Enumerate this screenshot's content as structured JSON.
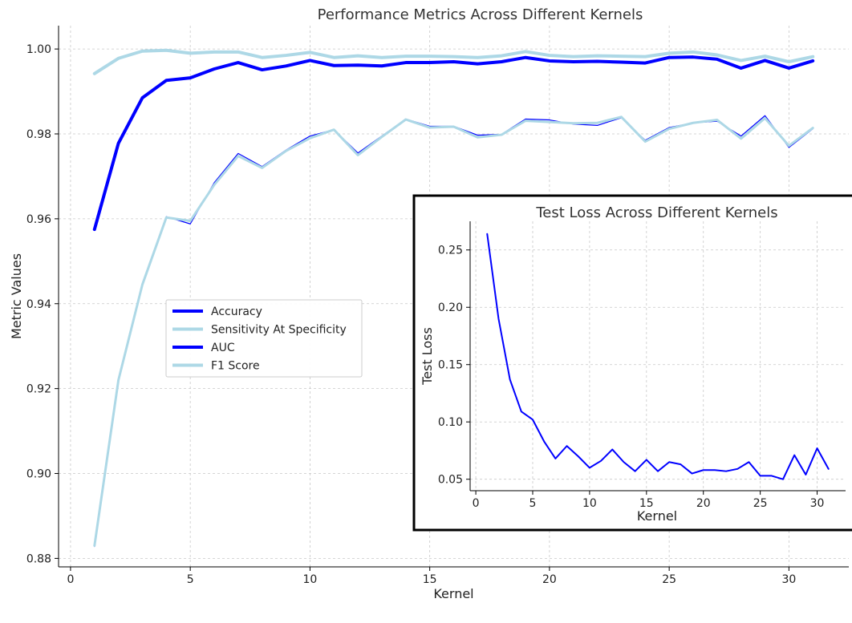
{
  "chart_data": [
    {
      "type": "line",
      "title": "Performance Metrics Across Different Kernels",
      "xlabel": "Kernel",
      "ylabel": "Metric Values",
      "xlim": [
        -0.5,
        32.5
      ],
      "ylim": [
        0.878,
        1.0055
      ],
      "xticks": [
        0,
        5,
        10,
        15,
        20,
        25,
        30
      ],
      "yticks": [
        0.88,
        0.9,
        0.92,
        0.94,
        0.96,
        0.98,
        1.0
      ],
      "grid": true,
      "legend_position": "center-left",
      "x": [
        1,
        2,
        3,
        4,
        5,
        6,
        7,
        8,
        9,
        10,
        11,
        12,
        13,
        14,
        15,
        16,
        17,
        18,
        19,
        20,
        21,
        22,
        23,
        24,
        25,
        26,
        27,
        28,
        29,
        30,
        31
      ],
      "series": [
        {
          "name": "Accuracy",
          "color": "#0000ff",
          "values": [
            0.9575,
            0.9778,
            0.9885,
            0.9926,
            0.9932,
            0.9953,
            0.9968,
            0.9951,
            0.996,
            0.9973,
            0.9961,
            0.9962,
            0.996,
            0.9968,
            0.9968,
            0.997,
            0.9965,
            0.997,
            0.998,
            0.9972,
            0.997,
            0.9971,
            0.9969,
            0.9967,
            0.998,
            0.9981,
            0.9976,
            0.9955,
            0.9973,
            0.9955,
            0.9972
          ]
        },
        {
          "name": "Sensitivity At Specificity",
          "color": "#add8e6",
          "values": [
            0.9942,
            0.9978,
            0.9995,
            0.9997,
            0.999,
            0.9993,
            0.9993,
            0.998,
            0.9985,
            0.9992,
            0.998,
            0.9984,
            0.998,
            0.9983,
            0.9983,
            0.9982,
            0.998,
            0.9984,
            0.9994,
            0.9985,
            0.9982,
            0.9984,
            0.9983,
            0.9982,
            0.999,
            0.9993,
            0.9986,
            0.9973,
            0.9983,
            0.997,
            0.9982
          ]
        },
        {
          "name": "AUC",
          "color": "#0000ff",
          "values": [
            0.8828,
            0.9218,
            0.9448,
            0.9605,
            0.9588,
            0.9685,
            0.9754,
            0.9723,
            0.9762,
            0.9795,
            0.981,
            0.9755,
            0.9795,
            0.9835,
            0.9818,
            0.9818,
            0.9797,
            0.9799,
            0.9835,
            0.9833,
            0.9823,
            0.982,
            0.9838,
            0.9785,
            0.9815,
            0.9826,
            0.983,
            0.9795,
            0.9843,
            0.9768,
            0.9812
          ]
        },
        {
          "name": "F1 Score",
          "color": "#add8e6",
          "values": [
            0.883,
            0.922,
            0.9445,
            0.9603,
            0.9595,
            0.968,
            0.9748,
            0.972,
            0.976,
            0.979,
            0.981,
            0.975,
            0.9793,
            0.9834,
            0.9815,
            0.9817,
            0.9792,
            0.9798,
            0.9831,
            0.9828,
            0.9825,
            0.9826,
            0.984,
            0.9782,
            0.9812,
            0.9826,
            0.9833,
            0.9789,
            0.9837,
            0.9772,
            0.9814
          ]
        }
      ]
    },
    {
      "type": "line",
      "title": "Test Loss Across Different Kernels",
      "xlabel": "Kernel",
      "ylabel": "Test Loss",
      "xlim": [
        -0.5,
        32.5
      ],
      "ylim": [
        0.04,
        0.275
      ],
      "xticks": [
        0,
        5,
        10,
        15,
        20,
        25,
        30
      ],
      "yticks": [
        0.05,
        0.1,
        0.15,
        0.2,
        0.25
      ],
      "grid": true,
      "x": [
        1,
        2,
        3,
        4,
        5,
        6,
        7,
        8,
        9,
        10,
        11,
        12,
        13,
        14,
        15,
        16,
        17,
        18,
        19,
        20,
        21,
        22,
        23,
        24,
        25,
        26,
        27,
        28,
        29,
        30,
        31
      ],
      "series": [
        {
          "color": "#0000ff",
          "values": [
            0.264,
            0.19,
            0.137,
            0.109,
            0.102,
            0.083,
            0.068,
            0.079,
            0.07,
            0.06,
            0.066,
            0.076,
            0.065,
            0.057,
            0.067,
            0.057,
            0.065,
            0.063,
            0.055,
            0.058,
            0.058,
            0.057,
            0.059,
            0.065,
            0.053,
            0.053,
            0.05,
            0.071,
            0.054,
            0.077,
            0.059
          ]
        }
      ]
    }
  ]
}
